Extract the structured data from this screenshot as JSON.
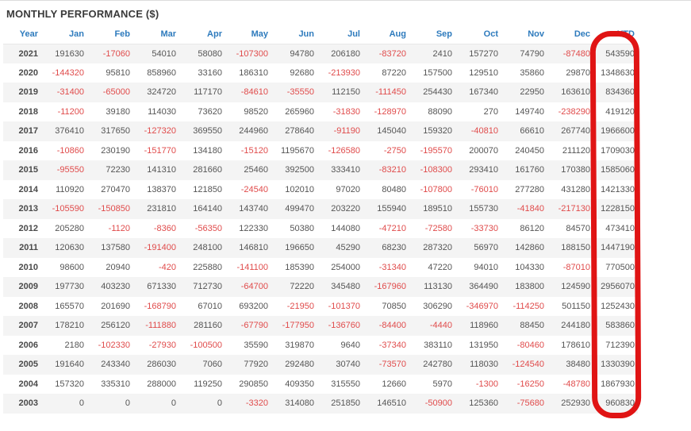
{
  "title": "MONTHLY PERFORMANCE ($)",
  "colors": {
    "header": "#2e7bbd",
    "positive": "#555555",
    "negative": "#e04b4b",
    "annotation": "#e01414",
    "zebra_row": "#f4f4f4"
  },
  "annotation": {
    "shape": "hand-drawn-rounded-rectangle",
    "highlighted_column": "YTD"
  },
  "chart_data": {
    "type": "table",
    "title": "MONTHLY PERFORMANCE ($)",
    "columns": [
      "Year",
      "Jan",
      "Feb",
      "Mar",
      "Apr",
      "May",
      "Jun",
      "Jul",
      "Aug",
      "Sep",
      "Oct",
      "Nov",
      "Dec",
      "YTD"
    ],
    "rows": [
      {
        "year": "2021",
        "months": [
          191630,
          -17060,
          54010,
          58080,
          -107300,
          94780,
          206180,
          -83720,
          2410,
          157270,
          74790,
          -87480
        ],
        "ytd": 543590
      },
      {
        "year": "2020",
        "months": [
          -144320,
          95810,
          858960,
          33160,
          186310,
          92680,
          -213930,
          87220,
          157500,
          129510,
          35860,
          29870
        ],
        "ytd": 1348630
      },
      {
        "year": "2019",
        "months": [
          -31400,
          -65000,
          324720,
          117170,
          -84610,
          -35550,
          112150,
          -111450,
          254430,
          167340,
          22950,
          163610
        ],
        "ytd": 834360
      },
      {
        "year": "2018",
        "months": [
          -11200,
          39180,
          114030,
          73620,
          98520,
          265960,
          -31830,
          -128970,
          88090,
          270,
          149740,
          -238290
        ],
        "ytd": 419120
      },
      {
        "year": "2017",
        "months": [
          376410,
          317650,
          -127320,
          369550,
          244960,
          278640,
          -91190,
          145040,
          159320,
          -40810,
          66610,
          267740
        ],
        "ytd": 1966600
      },
      {
        "year": "2016",
        "months": [
          -10860,
          230190,
          -151770,
          134180,
          -15120,
          1195670,
          -126580,
          -2750,
          -195570,
          200070,
          240450,
          211120
        ],
        "ytd": 1709030
      },
      {
        "year": "2015",
        "months": [
          -95550,
          72230,
          141310,
          281660,
          25460,
          392500,
          333410,
          -83210,
          -108300,
          293410,
          161760,
          170380
        ],
        "ytd": 1585060
      },
      {
        "year": "2014",
        "months": [
          110920,
          270470,
          138370,
          121850,
          -24540,
          102010,
          97020,
          80480,
          -107800,
          -76010,
          277280,
          431280
        ],
        "ytd": 1421330
      },
      {
        "year": "2013",
        "months": [
          -105590,
          -150850,
          231810,
          164140,
          143740,
          499470,
          203220,
          155940,
          189510,
          155730,
          -41840,
          -217130
        ],
        "ytd": 1228150
      },
      {
        "year": "2012",
        "months": [
          205280,
          -1120,
          -8360,
          -56350,
          122330,
          50380,
          144080,
          -47210,
          -72580,
          -33730,
          86120,
          84570
        ],
        "ytd": 473410
      },
      {
        "year": "2011",
        "months": [
          120630,
          137580,
          -191400,
          248100,
          146810,
          196650,
          45290,
          68230,
          287320,
          56970,
          142860,
          188150
        ],
        "ytd": 1447190
      },
      {
        "year": "2010",
        "months": [
          98600,
          20940,
          -420,
          225880,
          -141100,
          185390,
          254000,
          -31340,
          47220,
          94010,
          104330,
          -87010
        ],
        "ytd": 770500
      },
      {
        "year": "2009",
        "months": [
          197730,
          403230,
          671330,
          712730,
          -64700,
          72220,
          345480,
          -167960,
          113130,
          364490,
          183800,
          124590
        ],
        "ytd": 2956070
      },
      {
        "year": "2008",
        "months": [
          165570,
          201690,
          -168790,
          67010,
          693200,
          -21950,
          -101370,
          70850,
          306290,
          -346970,
          -114250,
          501150
        ],
        "ytd": 1252430
      },
      {
        "year": "2007",
        "months": [
          178210,
          256120,
          -111880,
          281160,
          -67790,
          -177950,
          -136760,
          -84400,
          -4440,
          118960,
          88450,
          244180
        ],
        "ytd": 583860
      },
      {
        "year": "2006",
        "months": [
          2180,
          -102330,
          -27930,
          -100500,
          35590,
          319870,
          9640,
          -37340,
          383110,
          131950,
          -80460,
          178610
        ],
        "ytd": 712390
      },
      {
        "year": "2005",
        "months": [
          191640,
          243340,
          286030,
          7060,
          77920,
          292480,
          30740,
          -73570,
          242780,
          118030,
          -124540,
          38480
        ],
        "ytd": 1330390
      },
      {
        "year": "2004",
        "months": [
          157320,
          335310,
          288000,
          119250,
          290850,
          409350,
          315550,
          12660,
          5970,
          -1300,
          -16250,
          -48780
        ],
        "ytd": 1867930
      },
      {
        "year": "2003",
        "months": [
          0,
          0,
          0,
          0,
          -3320,
          314080,
          251850,
          146510,
          -50900,
          125360,
          -75680,
          252930
        ],
        "ytd": 960830
      }
    ]
  }
}
